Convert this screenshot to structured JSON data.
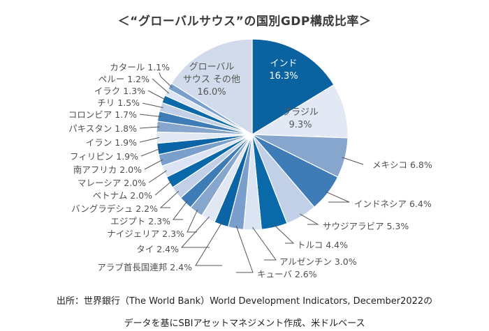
{
  "chart_data": {
    "type": "pie",
    "title": "＜“グローバルサウス”の国別GDP構成比率＞",
    "unit": "%",
    "start": "top, clockwise",
    "slices": [
      {
        "label": "インド",
        "value": 16.3,
        "color": "#0b62a1"
      },
      {
        "label": "ブラジル",
        "value": 9.3,
        "color": "#e3e9f4"
      },
      {
        "label": "メキシコ",
        "value": 6.8,
        "color": "#86a6ce"
      },
      {
        "label": "インドネシア",
        "value": 6.4,
        "color": "#3d7cb7"
      },
      {
        "label": "サウジアラビア",
        "value": 5.3,
        "color": "#c2d0e7"
      },
      {
        "label": "トルコ",
        "value": 4.4,
        "color": "#0a6aa9"
      },
      {
        "label": "アルゼンチン",
        "value": 3.0,
        "color": "#dbe4f2"
      },
      {
        "label": "キューバ",
        "value": 2.6,
        "color": "#7a9fcc"
      },
      {
        "label": "アラブ首長国連邦",
        "value": 2.4,
        "color": "#0a64a5"
      },
      {
        "label": "タイ",
        "value": 2.4,
        "color": "#e1e8f4"
      },
      {
        "label": "ナイジェリア",
        "value": 2.3,
        "color": "#86a6ce"
      },
      {
        "label": "エジプト",
        "value": 2.3,
        "color": "#3d7cb7"
      },
      {
        "label": "バングラデシュ",
        "value": 2.2,
        "color": "#c2d0e7"
      },
      {
        "label": "ベトナム",
        "value": 2.0,
        "color": "#0a6aa9"
      },
      {
        "label": "マレーシア",
        "value": 2.0,
        "color": "#dbe4f2"
      },
      {
        "label": "南アフリカ",
        "value": 2.0,
        "color": "#7a9fcc"
      },
      {
        "label": "フィリピン",
        "value": 1.9,
        "color": "#0a64a5"
      },
      {
        "label": "イラン",
        "value": 1.9,
        "color": "#e1e8f4"
      },
      {
        "label": "パキスタン",
        "value": 1.8,
        "color": "#86a6ce"
      },
      {
        "label": "コロンビア",
        "value": 1.7,
        "color": "#3d7cb7"
      },
      {
        "label": "チリ",
        "value": 1.5,
        "color": "#c2d0e7"
      },
      {
        "label": "イラク",
        "value": 1.3,
        "color": "#0a6aa9"
      },
      {
        "label": "ペルー",
        "value": 1.2,
        "color": "#dbe4f2"
      },
      {
        "label": "カタール",
        "value": 1.1,
        "color": "#7a9fcc"
      },
      {
        "label": "グローバルサウス その他",
        "value": 16.0,
        "color": "#d1dbec"
      }
    ]
  },
  "labels": [
    "インド 16.3%",
    "ブラジル 9.3%",
    "メキシコ 6.8%",
    "インドネシア 6.4%",
    "サウジアラビア 5.3%",
    "トルコ 4.4%",
    "アルゼンチン 3.0%",
    "キューバ 2.6%",
    "アラブ首長国連邦 2.4%",
    "タイ 2.4%",
    "ナイジェリア 2.3%",
    "エジプト 2.3%",
    "バングラデシュ 2.2%",
    "ベトナム 2.0%",
    "マレーシア 2.0%",
    "南アフリカ 2.0%",
    "フィリピン 1.9%",
    "イラン 1.9%",
    "パキスタン 1.8%",
    "コロンビア 1.7%",
    "チリ 1.5%",
    "イラク 1.3%",
    "ペルー 1.2%",
    "カタール 1.1%",
    "グローバルサウス その他 16.0%"
  ],
  "inside_labels": {
    "india": [
      "インド",
      "16.3%"
    ],
    "brazil": [
      "ブラジル",
      "9.3%"
    ],
    "others": [
      "グローバル",
      "サウス その他",
      "16.0%"
    ]
  },
  "source": {
    "line1": "出所：世界銀行（The World Bank）World Development Indicators, December2022の",
    "line2": "データを基にSBIアセットマネジメント作成、米ドルベース"
  }
}
